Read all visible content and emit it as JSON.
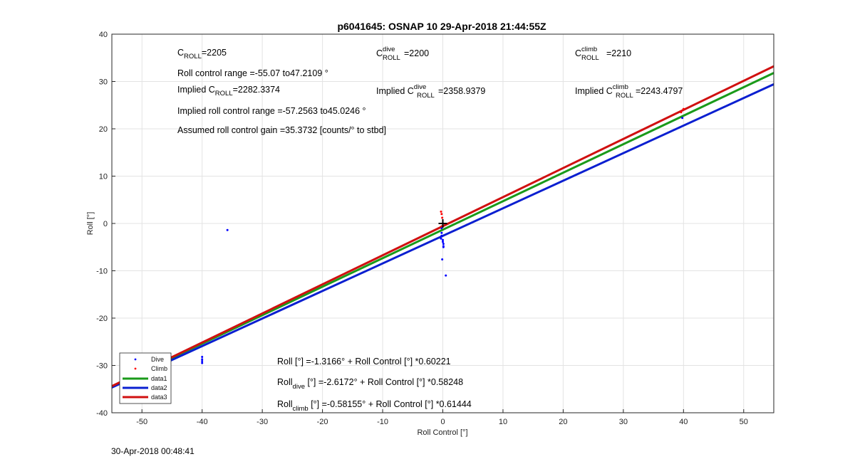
{
  "chart_data": {
    "type": "scatter",
    "title": "p6041645: OSNAP 10 29-Apr-2018 21:44:55Z",
    "xlabel": "Roll Control [°]",
    "ylabel": "Roll [°]",
    "xlim": [
      -55,
      55
    ],
    "ylim": [
      -40,
      40
    ],
    "xticks": [
      "-50",
      "-40",
      "-30",
      "-20",
      "-10",
      "0",
      "10",
      "20",
      "30",
      "40",
      "50"
    ],
    "yticks": [
      "40",
      "30",
      "20",
      "10",
      "0",
      "-10",
      "-20",
      "-30",
      "-40"
    ],
    "grid": true,
    "legend_position": "bottom-left",
    "legend": [
      "Dive",
      "Climb",
      "data1",
      "data2",
      "data3"
    ],
    "series": [
      {
        "name": "Dive",
        "kind": "points",
        "color": "#0000ff",
        "x": [
          -35.8,
          -40.0,
          -40.0,
          -40.0,
          -40.0,
          -0.2,
          -0.2,
          -0.2,
          -0.3,
          0.0,
          0.0,
          0.1,
          0.1,
          0.1,
          -0.1,
          0.5,
          39.8
        ],
        "y": [
          -1.4,
          -28.2,
          -28.7,
          -29.1,
          -29.5,
          -1.0,
          -2.0,
          -2.6,
          -3.2,
          -3.5,
          -3.9,
          -4.3,
          -4.8,
          -5.0,
          -7.6,
          -11.0,
          22.3
        ]
      },
      {
        "name": "Climb",
        "kind": "points",
        "color": "#ff0000",
        "x": [
          -0.3,
          -0.2,
          -0.1,
          -0.2,
          40.0,
          39.6
        ],
        "y": [
          2.5,
          2.0,
          1.2,
          -0.6,
          24.2,
          23.5
        ]
      },
      {
        "name": "data1",
        "kind": "line",
        "color": "#1a9a1a",
        "x": [
          -55,
          55
        ],
        "y": [
          -34.438,
          31.805
        ]
      },
      {
        "name": "data2",
        "kind": "line",
        "color": "#0a1fd0",
        "x": [
          -55,
          55
        ],
        "y": [
          -34.654,
          29.419
        ]
      },
      {
        "name": "data3",
        "kind": "line",
        "color": "#d01010",
        "x": [
          -55,
          55
        ],
        "y": [
          -34.376,
          33.213
        ]
      }
    ],
    "marker": {
      "x": 0,
      "y": 0,
      "symbol": "+",
      "color": "#000000"
    }
  },
  "annotations": {
    "croll_main": "C",
    "croll_sub": "ROLL",
    "croll_val": "=2205",
    "cdive_main": "C",
    "cdive_sup": "dive",
    "cdive_sub": "ROLL",
    "cdive_val": "=2200",
    "cclimb_main": "C",
    "cclimb_sup": "climb",
    "cclimb_sub": "ROLL",
    "cclimb_val": "=2210",
    "range": "Roll control range =-55.07 to47.2109 °",
    "implied_prefix": "Implied C",
    "implied_sub": "ROLL",
    "implied_val": "=2282.3374",
    "implied_dive_prefix": "Implied C",
    "implied_dive_sup": "dive",
    "implied_dive_sub": "ROLL",
    "implied_dive_val": "=2358.9379",
    "implied_climb_prefix": "Implied C",
    "implied_climb_sup": "climb",
    "implied_climb_sub": "ROLL",
    "implied_climb_val": "=2243.4797",
    "implied_range": "Implied roll control range =-57.2563 to45.0246 °",
    "gain": "Assumed roll control gain =35.3732 [counts/° to stbd]",
    "fit_all": "Roll [°] =-1.3166° + Roll Control [°] *0.60221",
    "fit_dive_pre": "Roll",
    "fit_dive_sub": "dive",
    "fit_dive_post": " [°] =-2.6172° + Roll Control [°] *0.58248",
    "fit_climb_pre": "Roll",
    "fit_climb_sub": "climb",
    "fit_climb_post": " [°] =-0.58155° + Roll Control [°] *0.61444"
  },
  "footer": {
    "timestamp": "30-Apr-2018 00:48:41"
  }
}
